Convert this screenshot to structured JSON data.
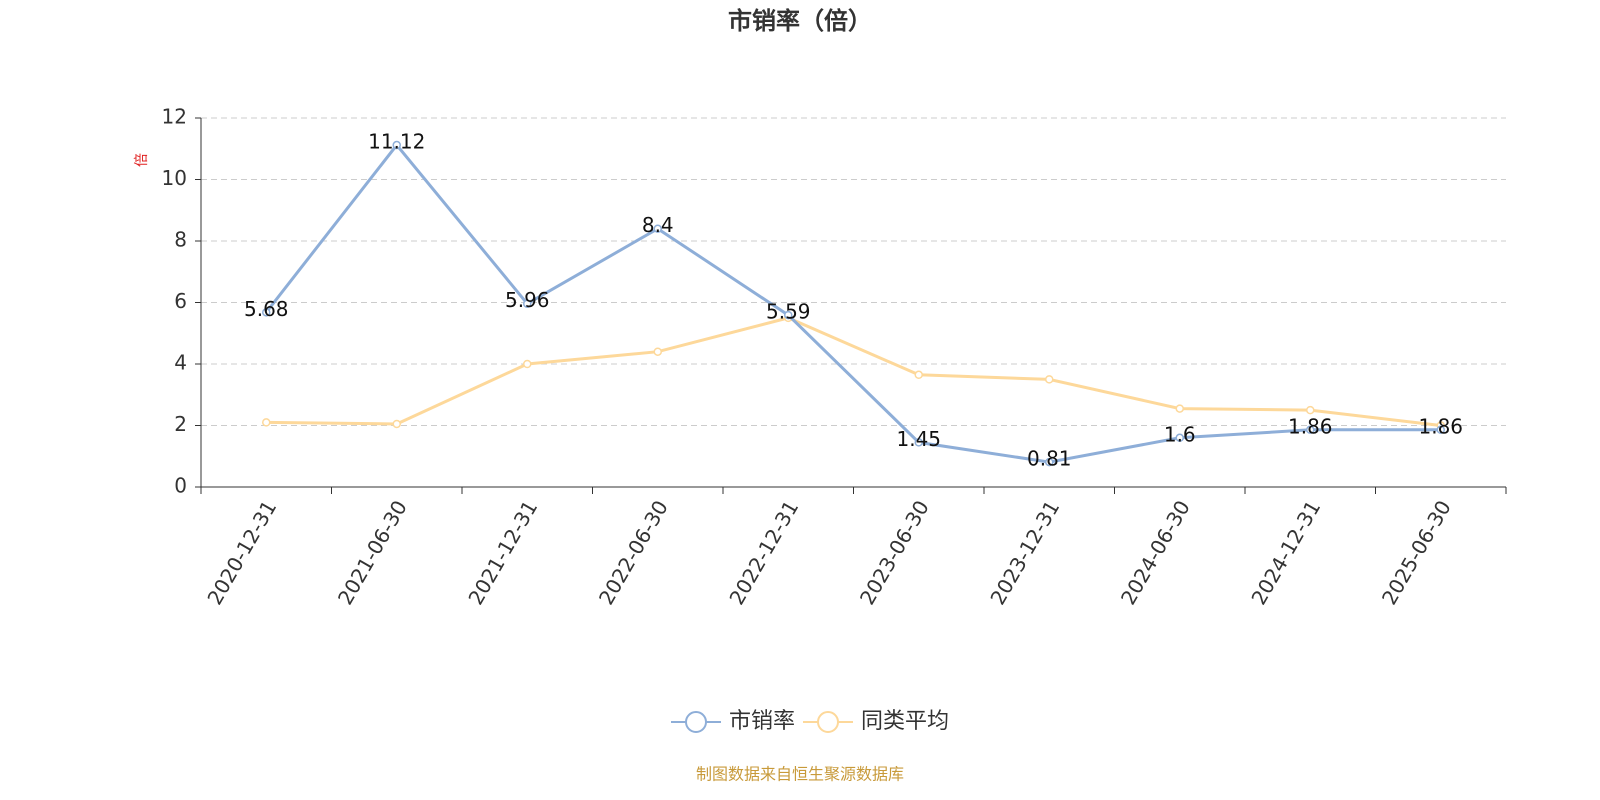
{
  "chart_data": {
    "type": "line",
    "title": "市销率（倍）",
    "y_label": "倍",
    "categories": [
      "2020-12-31",
      "2021-06-30",
      "2021-12-31",
      "2022-06-30",
      "2022-12-31",
      "2023-06-30",
      "2023-12-31",
      "2024-06-30",
      "2024-12-31",
      "2025-06-30"
    ],
    "series": [
      {
        "name": "市销率",
        "color": "#8eaed8",
        "labels": true,
        "values": [
          5.68,
          11.12,
          5.96,
          8.4,
          5.59,
          1.45,
          0.81,
          1.6,
          1.86,
          1.86
        ]
      },
      {
        "name": "同类平均",
        "color": "#fdd89a",
        "labels": false,
        "values": [
          2.1,
          2.05,
          4.0,
          4.4,
          5.5,
          3.65,
          3.5,
          2.55,
          2.5,
          2.0
        ]
      }
    ],
    "ylim": [
      0,
      12
    ],
    "yticks": [
      0,
      2,
      4,
      6,
      8,
      10,
      12
    ],
    "grid": true,
    "legend": "bottom",
    "source": "制图数据来自恒生聚源数据库"
  }
}
